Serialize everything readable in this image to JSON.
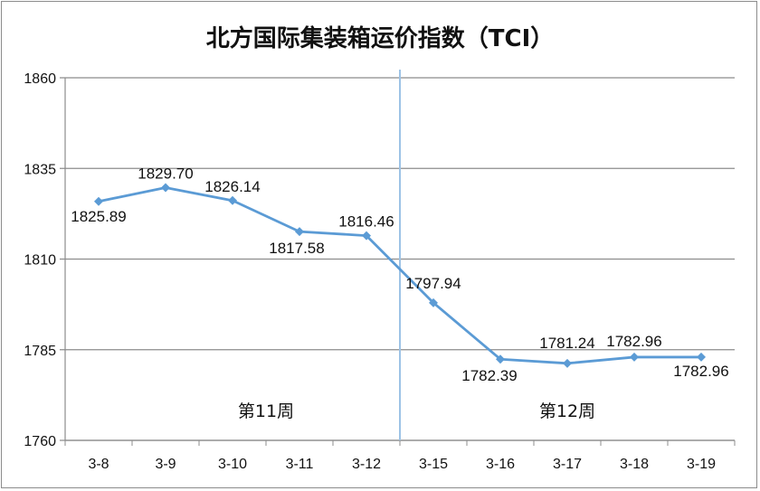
{
  "chart_data": {
    "type": "line",
    "title": "北方国际集装箱运价指数（TCI）",
    "categories": [
      "3-8",
      "3-9",
      "3-10",
      "3-11",
      "3-12",
      "3-15",
      "3-16",
      "3-17",
      "3-18",
      "3-19"
    ],
    "series": [
      {
        "values": [
          1825.89,
          1829.7,
          1826.14,
          1817.58,
          1816.46,
          1797.94,
          1782.39,
          1781.24,
          1782.96,
          1782.96
        ],
        "labels": [
          "1825.89",
          "1829.70",
          "1826.14",
          "1817.58",
          "1816.46",
          "1797.94",
          "1782.39",
          "1781.24",
          "1782.96",
          "1782.96"
        ],
        "color": "#5b9bd5"
      }
    ],
    "y_ticks": [
      "1860",
      "1835",
      "1810",
      "1785",
      "1760"
    ],
    "ylim": [
      1760,
      1860
    ],
    "grid": true,
    "annotations": [
      {
        "text": "第11周"
      },
      {
        "text": "第12周"
      }
    ],
    "divider_after_category": "3-12",
    "divider_color": "#9dc3e6"
  }
}
